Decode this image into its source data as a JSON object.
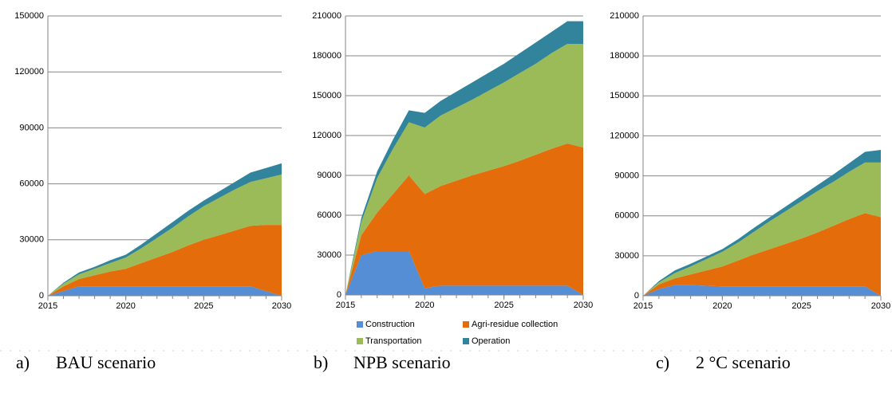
{
  "chart_data": [
    {
      "type": "area",
      "label": "a)",
      "title": "BAU scenario",
      "x": [
        2015,
        2016,
        2017,
        2018,
        2019,
        2020,
        2021,
        2022,
        2023,
        2024,
        2025,
        2026,
        2027,
        2028,
        2029,
        2030
      ],
      "xlim": [
        2015,
        2030
      ],
      "xticks": [
        2015,
        2020,
        2025,
        2030
      ],
      "ylim": [
        0,
        150000
      ],
      "yticks": [
        0,
        30000,
        60000,
        90000,
        120000,
        150000
      ],
      "grid": true,
      "stacked": true,
      "legend": false,
      "series": [
        {
          "color": "#558ed5",
          "values": [
            0,
            2500,
            5000,
            5000,
            5000,
            5000,
            5000,
            5000,
            5000,
            5000,
            5000,
            5000,
            5000,
            5000,
            2500,
            0
          ]
        },
        {
          "color": "#e46c0a",
          "values": [
            0,
            2500,
            4000,
            6000,
            8000,
            9500,
            12500,
            15500,
            18500,
            22000,
            25000,
            27500,
            30000,
            32500,
            35500,
            38000
          ]
        },
        {
          "color": "#9bbb59",
          "values": [
            0,
            1500,
            2500,
            3500,
            4500,
            6000,
            8000,
            10500,
            13000,
            15500,
            18000,
            20000,
            22000,
            23500,
            25000,
            27000
          ]
        },
        {
          "color": "#31849b",
          "values": [
            0,
            500,
            1000,
            1000,
            1500,
            1500,
            2000,
            2500,
            3000,
            3000,
            3000,
            3500,
            4000,
            5000,
            5500,
            6000
          ]
        }
      ]
    },
    {
      "type": "area",
      "label": "b)",
      "title": "NPB scenario",
      "x": [
        2015,
        2016,
        2017,
        2018,
        2019,
        2020,
        2021,
        2022,
        2023,
        2024,
        2025,
        2026,
        2027,
        2028,
        2029,
        2030
      ],
      "xlim": [
        2015,
        2030
      ],
      "xticks": [
        2015,
        2020,
        2025,
        2030
      ],
      "ylim": [
        0,
        210000
      ],
      "yticks": [
        0,
        30000,
        60000,
        90000,
        120000,
        150000,
        180000,
        210000
      ],
      "grid": true,
      "stacked": true,
      "legend": true,
      "series": [
        {
          "name": "Construction",
          "color": "#558ed5",
          "values": [
            0,
            30000,
            33000,
            33000,
            33000,
            5000,
            7000,
            7000,
            7000,
            7000,
            7000,
            7000,
            7000,
            7000,
            7000,
            0
          ]
        },
        {
          "name": "Agri-residue collection",
          "color": "#e46c0a",
          "values": [
            0,
            15000,
            29000,
            43000,
            57000,
            71000,
            75000,
            79000,
            83000,
            86500,
            90000,
            94000,
            98500,
            103000,
            107000,
            111000
          ]
        },
        {
          "name": "Transportation",
          "color": "#9bbb59",
          "values": [
            0,
            10000,
            26000,
            34000,
            40000,
            50000,
            53000,
            55000,
            57000,
            60000,
            63000,
            66000,
            68500,
            72000,
            75000,
            78000
          ]
        },
        {
          "name": "Operation",
          "color": "#31849b",
          "values": [
            0,
            3000,
            5000,
            7000,
            9000,
            11000,
            11000,
            12000,
            13000,
            13500,
            14000,
            15000,
            16000,
            16000,
            17000,
            17000
          ]
        }
      ]
    },
    {
      "type": "area",
      "label": "c)",
      "title": "2 °C scenario",
      "x": [
        2015,
        2016,
        2017,
        2018,
        2019,
        2020,
        2021,
        2022,
        2023,
        2024,
        2025,
        2026,
        2027,
        2028,
        2029,
        2030
      ],
      "xlim": [
        2015,
        2030
      ],
      "xticks": [
        2015,
        2020,
        2025,
        2030
      ],
      "ylim": [
        0,
        210000
      ],
      "yticks": [
        0,
        30000,
        60000,
        90000,
        120000,
        150000,
        180000,
        210000
      ],
      "grid": true,
      "stacked": true,
      "legend": false,
      "series": [
        {
          "color": "#558ed5",
          "values": [
            0,
            5000,
            8000,
            8000,
            7500,
            7000,
            7000,
            7000,
            7000,
            7000,
            7000,
            7000,
            7000,
            7000,
            7000,
            0
          ]
        },
        {
          "color": "#e46c0a",
          "values": [
            0,
            3500,
            5000,
            8000,
            11500,
            15000,
            19500,
            24000,
            28000,
            32000,
            36000,
            40500,
            45500,
            50500,
            55000,
            59000
          ]
        },
        {
          "color": "#9bbb59",
          "values": [
            0,
            1500,
            4000,
            6000,
            8500,
            11000,
            13500,
            17000,
            21000,
            24500,
            28000,
            31000,
            33000,
            35500,
            38000,
            41000
          ]
        },
        {
          "color": "#31849b",
          "values": [
            0,
            1000,
            2000,
            2000,
            2000,
            2000,
            2500,
            3000,
            3000,
            3500,
            4000,
            4500,
            5500,
            6500,
            8000,
            9500
          ]
        }
      ]
    }
  ]
}
